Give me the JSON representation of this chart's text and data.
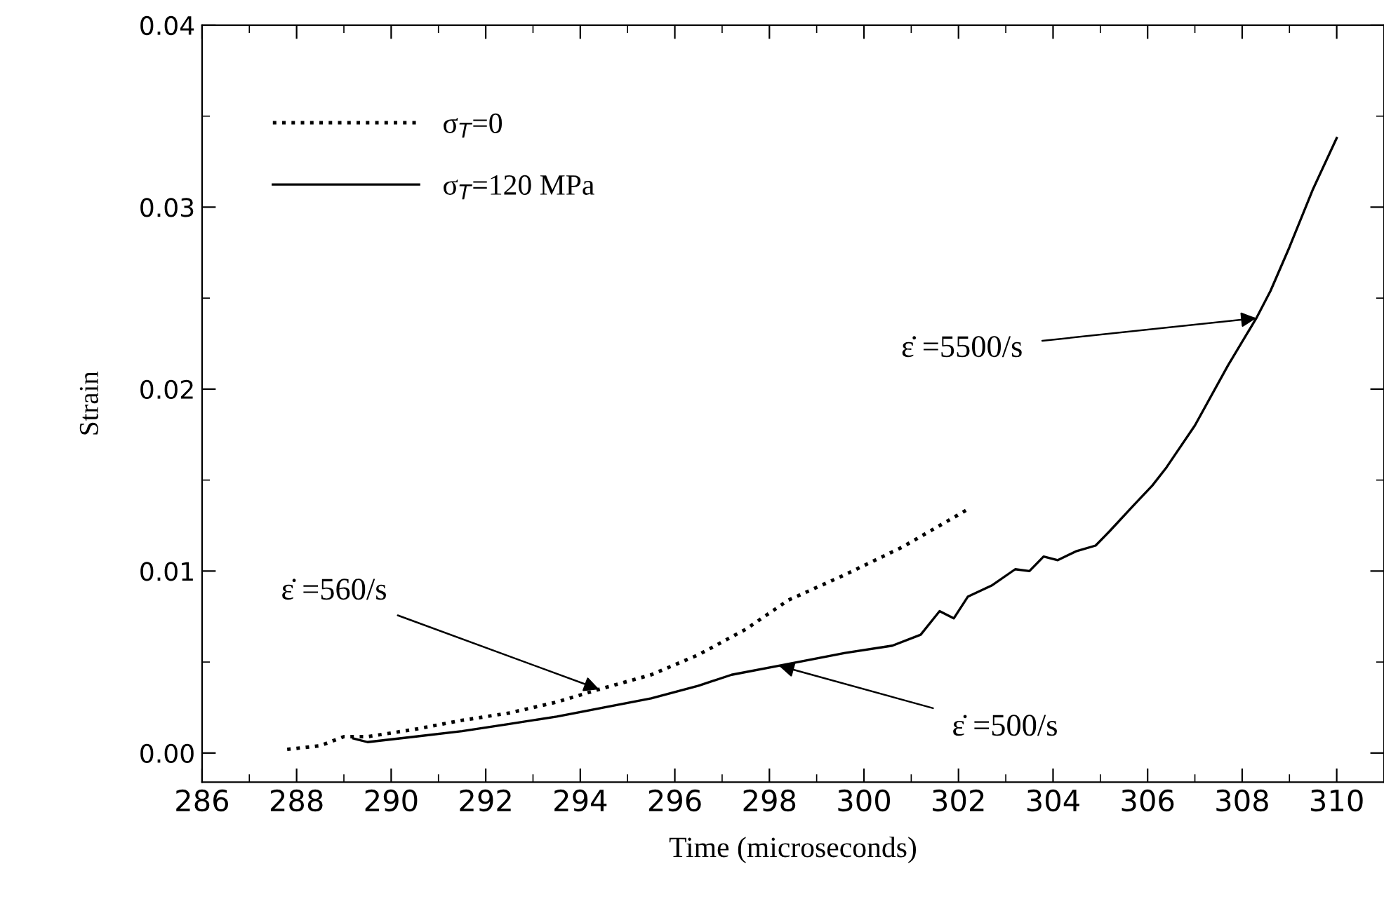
{
  "chart_data": {
    "type": "line",
    "xlabel": "Time (microseconds)",
    "ylabel": "Strain",
    "xlim": [
      286,
      311
    ],
    "ylim": [
      -0.0016,
      0.04
    ],
    "xticks": [
      286,
      288,
      290,
      292,
      294,
      296,
      298,
      300,
      302,
      304,
      306,
      308,
      310
    ],
    "yticks": [
      {
        "value": 0,
        "label": "0.00"
      },
      {
        "value": 0.01,
        "label": "0.01"
      },
      {
        "value": 0.02,
        "label": "0.02"
      },
      {
        "value": 0.03,
        "label": "0.03"
      },
      {
        "value": 0.04,
        "label": "0.04"
      }
    ],
    "grid": false,
    "legend": "top left",
    "marker": "none",
    "series": [
      {
        "name": "σ$_{T}$=0",
        "color": "#000000",
        "line_style": "dotted",
        "x": [
          287.8,
          288.5,
          289.0,
          289.5,
          290.5,
          291.5,
          292.5,
          293.5,
          294.4,
          295.5,
          296.5,
          297.5,
          298.4,
          299.6,
          300.8,
          302.2
        ],
        "values": [
          0.0002,
          0.0004,
          0.0009,
          0.0009,
          0.0013,
          0.0018,
          0.0022,
          0.0028,
          0.0035,
          0.0043,
          0.0054,
          0.0068,
          0.0084,
          0.0098,
          0.0113,
          0.0134
        ]
      },
      {
        "name": "σ$_{T}$=120 MPa",
        "color": "#000000",
        "line_style": "solid",
        "x": [
          289.2,
          289.5,
          290.5,
          291.5,
          292.5,
          293.5,
          294.5,
          295.5,
          296.5,
          297.2,
          298.2,
          299.6,
          300.6,
          301.2,
          301.6,
          301.9,
          302.2,
          302.7,
          303.2,
          303.5,
          303.8,
          304.1,
          304.5,
          304.9,
          305.2,
          305.7,
          306.1,
          306.4,
          307.0,
          307.7,
          308.3,
          308.6,
          309.0,
          309.5,
          310.0
        ],
        "values": [
          0.0008,
          0.0006,
          0.0009,
          0.0012,
          0.0016,
          0.002,
          0.0025,
          0.003,
          0.0037,
          0.0043,
          0.0048,
          0.0055,
          0.0059,
          0.0065,
          0.0078,
          0.0074,
          0.0086,
          0.0092,
          0.0101,
          0.01,
          0.0108,
          0.0106,
          0.0111,
          0.0114,
          0.0122,
          0.0136,
          0.0147,
          0.0157,
          0.018,
          0.0213,
          0.0239,
          0.0254,
          0.0278,
          0.031,
          0.0338
        ]
      }
    ],
    "annotations": [
      {
        "text": "ε̇ =560/s",
        "x": 294.4,
        "y": 0.0035
      },
      {
        "text": "ε̇ =500/s",
        "x": 298.2,
        "y": 0.0048
      },
      {
        "text": "ε̇ =5500/s",
        "x": 308.3,
        "y": 0.0239
      }
    ]
  }
}
